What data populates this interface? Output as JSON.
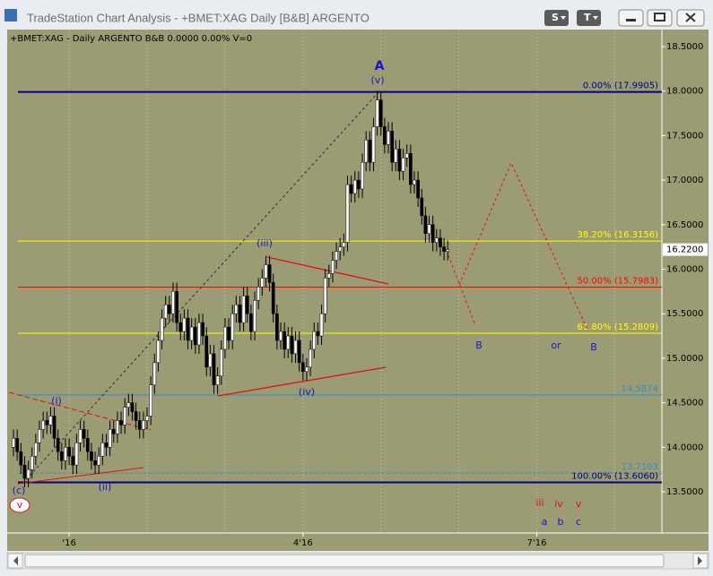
{
  "window": {
    "title": "TradeStation Chart Analysis - +BMET:XAG Daily [B&B] ARGENTO",
    "buttons": [
      "S",
      "T"
    ]
  },
  "chart_data": {
    "type": "candlestick",
    "symbol_line": "+BMET:XAG - Daily  ARGENTO  B&B  0.0000  0.00%  V=0",
    "background": "#9c9c74",
    "up_color": "#ffffff",
    "down_color": "#000000",
    "xlim": [
      -16.7,
      159.7
    ],
    "ylim": [
      13.037,
      18.691
    ],
    "xticks": [
      {
        "value": 0,
        "label": "'16"
      },
      {
        "value": 63,
        "label": "4'16"
      },
      {
        "value": 126,
        "label": "7'16"
      }
    ],
    "xgrid": [
      21,
      42,
      84,
      105,
      147
    ],
    "yticks": [
      {
        "value": 13.5,
        "label": "13.5000"
      },
      {
        "value": 14,
        "label": "14.0000"
      },
      {
        "value": 14.5,
        "label": "14.5000"
      },
      {
        "value": 15,
        "label": "15.0000"
      },
      {
        "value": 15.5,
        "label": "15.5000"
      },
      {
        "value": 16,
        "label": "16.0000"
      },
      {
        "value": 16.5,
        "label": "16.5000"
      },
      {
        "value": 17,
        "label": "17.0000"
      },
      {
        "value": 17.5,
        "label": "17.5000"
      },
      {
        "value": 18,
        "label": "18.0000"
      },
      {
        "value": 18.5,
        "label": "18.5000"
      }
    ],
    "last_price": {
      "value": 16.22,
      "label": "16.2200"
    },
    "levels": [
      {
        "label": "0.00% (17.9905)",
        "value": 17.9905,
        "color": "#000080"
      },
      {
        "label": "38.20% (16.3156)",
        "value": 16.3156,
        "color": "#ffff00"
      },
      {
        "label": "50.00% (15.7983)",
        "value": 15.7983,
        "color": "#ff0000"
      },
      {
        "label": "61.80% (15.2809)",
        "value": 15.2809,
        "color": "#ffff00"
      },
      {
        "value": 14.5874,
        "color": "#2a8fc8"
      },
      {
        "value": 13.7103,
        "color": "#2a8fc8",
        "dashed": true
      },
      {
        "label": "100.00% (13.6060)",
        "value": 13.606,
        "color": "#000080"
      }
    ],
    "wave_labels": [
      "A",
      "(v)",
      "(iii)",
      "(iv)",
      "(i)",
      "(ii)",
      "(c)",
      "v",
      "B",
      "or",
      "B",
      "iii",
      "iv",
      "v",
      "a",
      "b",
      "c"
    ],
    "x": [
      -15,
      -14,
      -13,
      -12,
      -11,
      -10,
      -9,
      -8,
      -7,
      -6,
      -5,
      -4,
      -3,
      -2,
      -1,
      0,
      1,
      2,
      3,
      4,
      5,
      6,
      7,
      8,
      9,
      10,
      11,
      12,
      13,
      14,
      15,
      16,
      17,
      18,
      19,
      20,
      21,
      22,
      23,
      24,
      25,
      26,
      27,
      28,
      29,
      30,
      31,
      32,
      33,
      34,
      35,
      36,
      37,
      38,
      39,
      40,
      41,
      42,
      43,
      44,
      45,
      46,
      47,
      48,
      49,
      50,
      51,
      52,
      53,
      54,
      55,
      56,
      57,
      58,
      59,
      60,
      61,
      62,
      63,
      64,
      65,
      66,
      67,
      68,
      69,
      70,
      71,
      72,
      73,
      74,
      75,
      76,
      77,
      78,
      79,
      80,
      81,
      82,
      83,
      84,
      85,
      86,
      87,
      88,
      89,
      90,
      91,
      92,
      93,
      94,
      95,
      96,
      97,
      98,
      99,
      100,
      101,
      102
    ],
    "ohlc": [
      [
        14.0,
        14.2,
        13.9,
        14.1
      ],
      [
        14.1,
        14.2,
        13.85,
        13.95
      ],
      [
        13.95,
        14.05,
        13.7,
        13.8
      ],
      [
        13.8,
        13.9,
        13.55,
        13.65
      ],
      [
        13.65,
        13.85,
        13.55,
        13.75
      ],
      [
        13.75,
        14.0,
        13.65,
        13.9
      ],
      [
        13.9,
        14.15,
        13.8,
        14.05
      ],
      [
        14.05,
        14.3,
        13.95,
        14.2
      ],
      [
        14.2,
        14.4,
        14.1,
        14.3
      ],
      [
        14.3,
        14.4,
        14.15,
        14.25
      ],
      [
        14.25,
        14.45,
        14.15,
        14.35
      ],
      [
        14.35,
        14.45,
        14.0,
        14.1
      ],
      [
        14.1,
        14.2,
        13.85,
        13.95
      ],
      [
        13.95,
        14.05,
        13.75,
        13.85
      ],
      [
        13.85,
        14.1,
        13.75,
        14.0
      ],
      [
        14.0,
        14.1,
        13.8,
        13.9
      ],
      [
        13.9,
        14.0,
        13.7,
        13.8
      ],
      [
        13.8,
        14.15,
        13.7,
        14.05
      ],
      [
        14.05,
        14.3,
        13.95,
        14.2
      ],
      [
        14.2,
        14.3,
        14.0,
        14.1
      ],
      [
        14.1,
        14.2,
        13.85,
        13.95
      ],
      [
        13.95,
        14.05,
        13.75,
        13.85
      ],
      [
        13.85,
        13.95,
        13.7,
        13.8
      ],
      [
        13.8,
        14.0,
        13.7,
        13.9
      ],
      [
        13.9,
        14.15,
        13.8,
        14.05
      ],
      [
        14.05,
        14.15,
        13.9,
        14.0
      ],
      [
        14.0,
        14.3,
        13.9,
        14.2
      ],
      [
        14.2,
        14.3,
        14.05,
        14.15
      ],
      [
        14.15,
        14.4,
        14.05,
        14.3
      ],
      [
        14.3,
        14.4,
        14.15,
        14.25
      ],
      [
        14.25,
        14.55,
        14.15,
        14.45
      ],
      [
        14.45,
        14.6,
        14.35,
        14.5
      ],
      [
        14.5,
        14.6,
        14.3,
        14.4
      ],
      [
        14.4,
        14.5,
        14.2,
        14.3
      ],
      [
        14.3,
        14.4,
        14.1,
        14.2
      ],
      [
        14.2,
        14.4,
        14.1,
        14.3
      ],
      [
        14.3,
        14.45,
        14.2,
        14.35
      ],
      [
        14.35,
        14.8,
        14.25,
        14.7
      ],
      [
        14.7,
        15.05,
        14.6,
        14.95
      ],
      [
        14.95,
        15.3,
        14.85,
        15.2
      ],
      [
        15.2,
        15.55,
        15.1,
        15.45
      ],
      [
        15.45,
        15.7,
        15.35,
        15.6
      ],
      [
        15.6,
        15.7,
        15.4,
        15.5
      ],
      [
        15.5,
        15.85,
        15.4,
        15.75
      ],
      [
        15.75,
        15.85,
        15.3,
        15.4
      ],
      [
        15.4,
        15.5,
        15.2,
        15.3
      ],
      [
        15.3,
        15.55,
        15.2,
        15.45
      ],
      [
        15.45,
        15.55,
        15.1,
        15.2
      ],
      [
        15.2,
        15.45,
        15.1,
        15.35
      ],
      [
        15.35,
        15.45,
        15.05,
        15.15
      ],
      [
        15.15,
        15.5,
        15.05,
        15.4
      ],
      [
        15.4,
        15.5,
        15.15,
        15.25
      ],
      [
        15.25,
        15.35,
        14.8,
        14.9
      ],
      [
        14.9,
        15.15,
        14.8,
        15.05
      ],
      [
        15.05,
        15.15,
        14.6,
        14.7
      ],
      [
        14.7,
        14.9,
        14.6,
        14.8
      ],
      [
        14.8,
        15.2,
        14.7,
        15.1
      ],
      [
        15.1,
        15.45,
        15.0,
        15.35
      ],
      [
        15.35,
        15.45,
        15.1,
        15.2
      ],
      [
        15.2,
        15.6,
        15.1,
        15.5
      ],
      [
        15.5,
        15.7,
        15.4,
        15.6
      ],
      [
        15.6,
        15.7,
        15.3,
        15.4
      ],
      [
        15.4,
        15.8,
        15.3,
        15.7
      ],
      [
        15.7,
        15.8,
        15.4,
        15.5
      ],
      [
        15.5,
        15.6,
        15.2,
        15.3
      ],
      [
        15.3,
        15.75,
        15.2,
        15.65
      ],
      [
        15.65,
        15.9,
        15.55,
        15.8
      ],
      [
        15.8,
        16.0,
        15.7,
        15.9
      ],
      [
        15.9,
        16.15,
        15.8,
        16.05
      ],
      [
        16.05,
        16.15,
        15.75,
        15.85
      ],
      [
        15.85,
        15.95,
        15.4,
        15.5
      ],
      [
        15.5,
        15.6,
        15.1,
        15.2
      ],
      [
        15.2,
        15.4,
        15.1,
        15.3
      ],
      [
        15.3,
        15.4,
        15.0,
        15.1
      ],
      [
        15.1,
        15.35,
        15.0,
        15.25
      ],
      [
        15.25,
        15.35,
        14.95,
        15.05
      ],
      [
        15.05,
        15.3,
        14.95,
        15.2
      ],
      [
        15.2,
        15.3,
        14.85,
        14.95
      ],
      [
        14.95,
        15.05,
        14.75,
        14.85
      ],
      [
        14.85,
        15.0,
        14.75,
        14.9
      ],
      [
        14.9,
        15.2,
        14.8,
        15.1
      ],
      [
        15.1,
        15.4,
        15.0,
        15.3
      ],
      [
        15.3,
        15.4,
        15.15,
        15.25
      ],
      [
        15.25,
        15.6,
        15.15,
        15.5
      ],
      [
        15.5,
        16.0,
        15.4,
        15.9
      ],
      [
        15.9,
        16.05,
        15.8,
        15.95
      ],
      [
        15.95,
        16.2,
        15.85,
        16.1
      ],
      [
        16.1,
        16.3,
        16.0,
        16.2
      ],
      [
        16.2,
        16.35,
        16.1,
        16.25
      ],
      [
        16.25,
        16.4,
        16.15,
        16.3
      ],
      [
        16.3,
        17.05,
        16.2,
        16.95
      ],
      [
        16.95,
        17.05,
        16.75,
        16.85
      ],
      [
        16.85,
        17.1,
        16.75,
        17.0
      ],
      [
        17.0,
        17.1,
        16.8,
        16.9
      ],
      [
        16.9,
        17.3,
        16.8,
        17.2
      ],
      [
        17.2,
        17.55,
        17.1,
        17.45
      ],
      [
        17.45,
        17.55,
        17.1,
        17.2
      ],
      [
        17.2,
        17.7,
        17.1,
        17.6
      ],
      [
        17.6,
        18.0,
        17.5,
        17.9
      ],
      [
        17.9,
        18.0,
        17.5,
        17.6
      ],
      [
        17.6,
        17.7,
        17.3,
        17.4
      ],
      [
        17.4,
        17.65,
        17.3,
        17.55
      ],
      [
        17.55,
        17.65,
        17.1,
        17.2
      ],
      [
        17.2,
        17.45,
        17.1,
        17.35
      ],
      [
        17.35,
        17.45,
        17.0,
        17.1
      ],
      [
        17.1,
        17.35,
        17.0,
        17.25
      ],
      [
        17.25,
        17.4,
        17.15,
        17.3
      ],
      [
        17.3,
        17.4,
        16.85,
        16.95
      ],
      [
        16.95,
        17.1,
        16.85,
        17.0
      ],
      [
        17.0,
        17.1,
        16.7,
        16.8
      ],
      [
        16.8,
        16.9,
        16.5,
        16.6
      ],
      [
        16.6,
        16.7,
        16.3,
        16.4
      ],
      [
        16.4,
        16.6,
        16.3,
        16.5
      ],
      [
        16.5,
        16.6,
        16.2,
        16.3
      ],
      [
        16.3,
        16.45,
        16.2,
        16.35
      ],
      [
        16.35,
        16.45,
        16.15,
        16.25
      ],
      [
        16.25,
        16.35,
        16.1,
        16.2
      ],
      [
        16.2,
        16.32,
        16.1,
        16.22
      ]
    ]
  }
}
